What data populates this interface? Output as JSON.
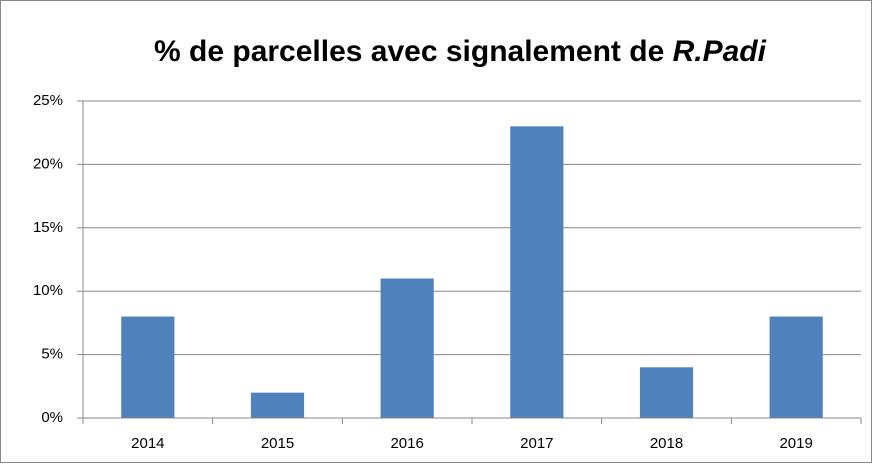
{
  "chart_data": {
    "type": "bar",
    "title": [
      "% de parcelles avec signalement de",
      "R.Padi"
    ],
    "categories": [
      "2014",
      "2015",
      "2016",
      "2017",
      "2018",
      "2019"
    ],
    "values": [
      8,
      2,
      11,
      23,
      4,
      8
    ],
    "color": "#4f81bd",
    "ylim": [
      0,
      25
    ],
    "yticks": [
      {
        "value": 0,
        "label": "0%"
      },
      {
        "value": 5,
        "label": "5%"
      },
      {
        "value": 10,
        "label": "10%"
      },
      {
        "value": 15,
        "label": "15%"
      },
      {
        "value": 20,
        "label": "20%"
      },
      {
        "value": 25,
        "label": "25%"
      }
    ],
    "grid": true
  }
}
